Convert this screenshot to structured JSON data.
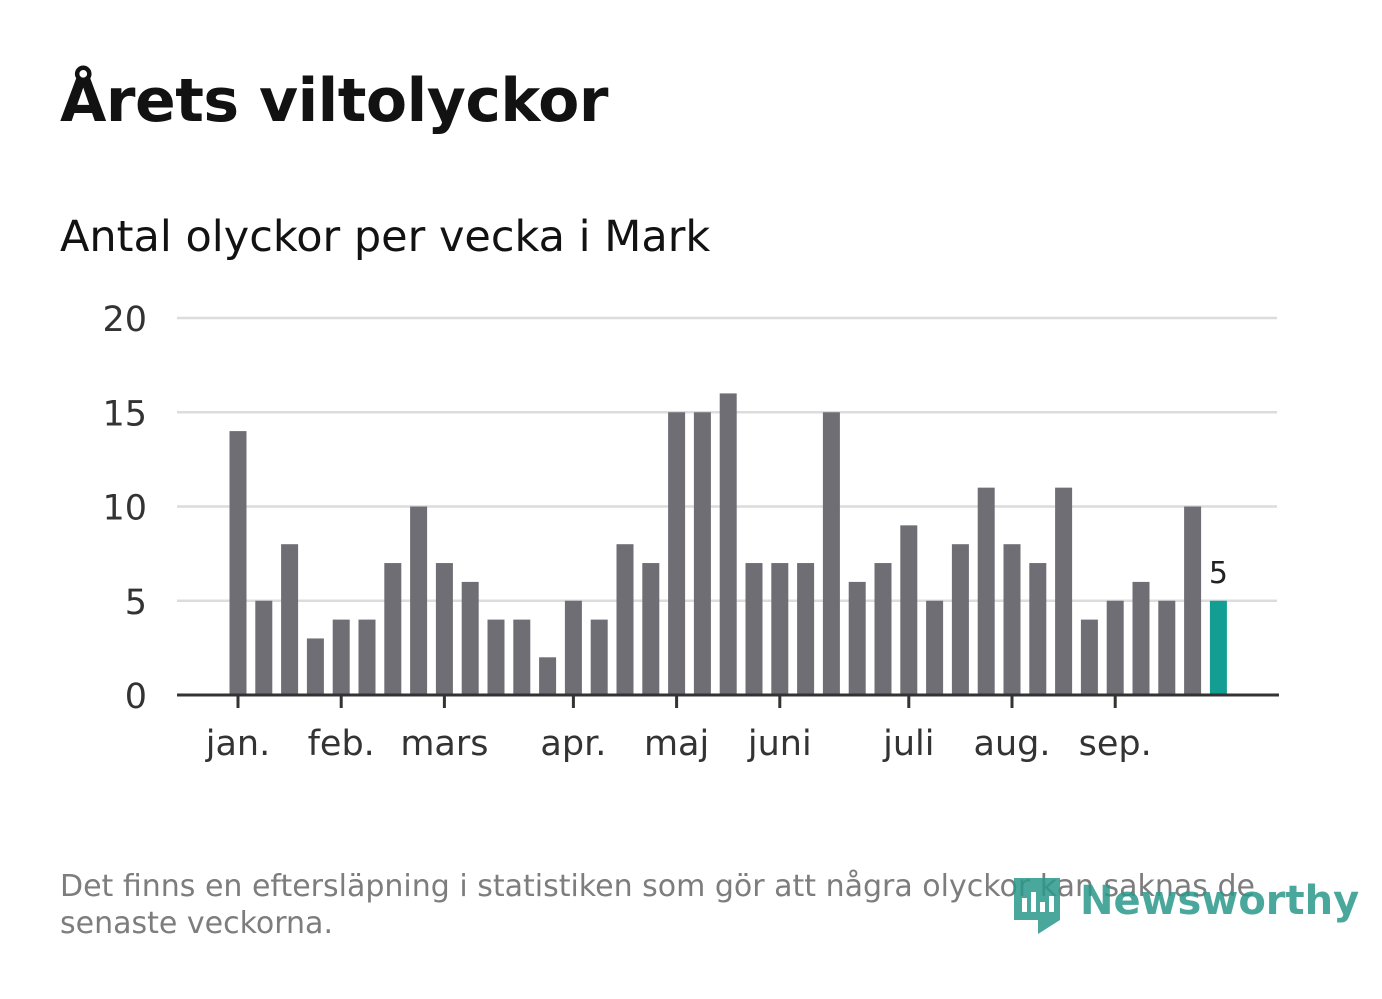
{
  "header": {
    "title": "Årets viltolyckor",
    "subtitle": "Antal olyckor per vecka i Mark"
  },
  "footer": {
    "note": "Det finns en eftersläpning i statistiken som gör att några olyckor kan saknas de senaste veckorna.",
    "brand": "Newsworthy"
  },
  "colors": {
    "bar": "#6f6e74",
    "highlight": "#139e94",
    "grid": "#dcdcdc",
    "axis": "#333333",
    "logo": "#2a9a8a"
  },
  "chart_data": {
    "type": "bar",
    "title": "Antal olyckor per vecka i Mark",
    "xlabel": "",
    "ylabel": "",
    "ylim": [
      0,
      20
    ],
    "yticks": [
      0,
      5,
      10,
      15,
      20
    ],
    "weeks": [
      1,
      2,
      3,
      4,
      5,
      6,
      7,
      8,
      9,
      10,
      11,
      12,
      13,
      14,
      15,
      16,
      17,
      18,
      19,
      20,
      21,
      22,
      23,
      24,
      25,
      26,
      27,
      28,
      29,
      30,
      31,
      32,
      33,
      34,
      35,
      36,
      37,
      38,
      39
    ],
    "values": [
      14,
      5,
      8,
      3,
      4,
      4,
      7,
      10,
      7,
      6,
      4,
      4,
      2,
      5,
      4,
      8,
      7,
      15,
      15,
      16,
      7,
      7,
      7,
      15,
      6,
      7,
      9,
      5,
      8,
      11,
      8,
      7,
      11,
      4,
      5,
      6,
      5,
      10,
      5
    ],
    "highlight_index": 38,
    "highlight_label": "5",
    "month_ticks": [
      {
        "label": "jan.",
        "week": 1
      },
      {
        "label": "feb.",
        "week": 5
      },
      {
        "label": "mars",
        "week": 9
      },
      {
        "label": "apr.",
        "week": 14
      },
      {
        "label": "maj",
        "week": 18
      },
      {
        "label": "juni",
        "week": 22
      },
      {
        "label": "juli",
        "week": 27
      },
      {
        "label": "aug.",
        "week": 31
      },
      {
        "label": "sep.",
        "week": 35
      }
    ],
    "grid": true,
    "legend": "none"
  }
}
